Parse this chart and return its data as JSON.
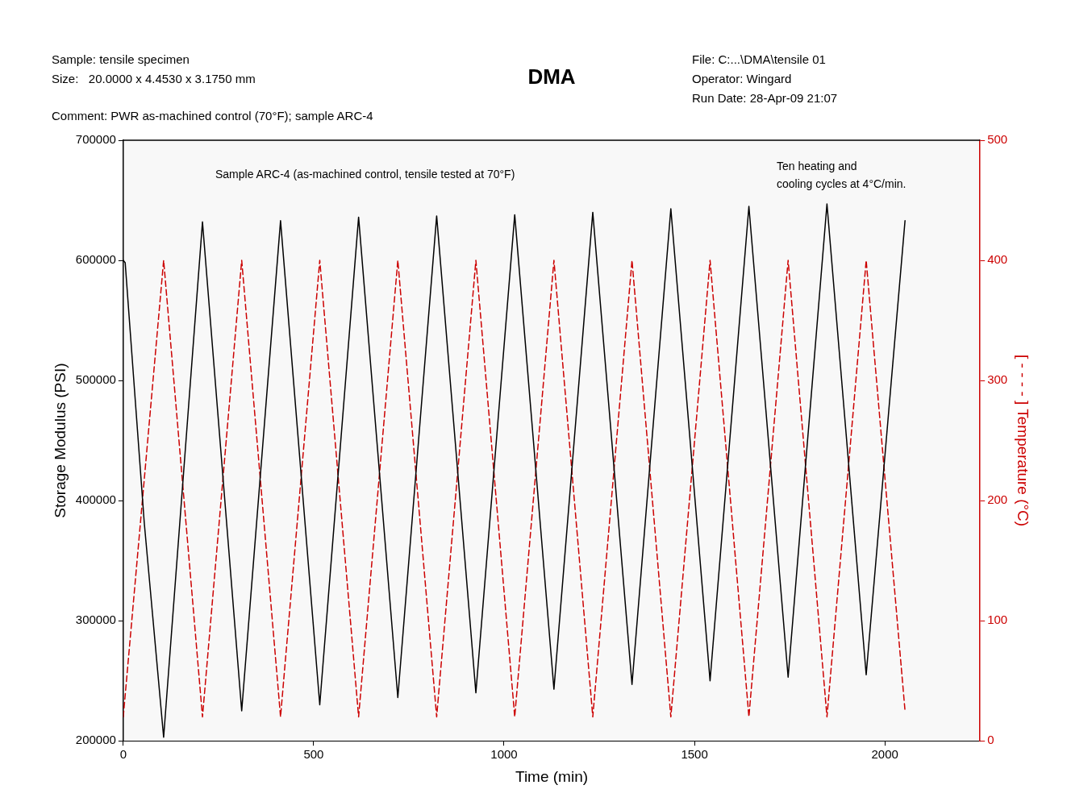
{
  "chart_data": {
    "type": "line",
    "title": "DMA",
    "xlabel": "Time (min)",
    "ylabel": "Storage Modulus (PSI)",
    "y2label": "[ - - - - ] Temperature (°C)",
    "annotations": [
      "Sample: tensile specimen",
      "Size:   20.0000 x 4.4530 x 3.1750 mm",
      "Comment: PWR as-machined control (70°F); sample ARC-4",
      "File: C:...\\DMA\\tensile 01",
      "Operator: Wingard",
      "Run Date: 28-Apr-09 21:07",
      "Sample ARC-4 (as-machined control, tensile tested at 70°F)",
      "Ten heating and\ncooling cycles at 4°C/min."
    ],
    "xlim": [
      0,
      2250
    ],
    "xticks": [
      0,
      500,
      1000,
      1500,
      2000
    ],
    "ylim": [
      200000,
      700000
    ],
    "yticks": [
      200000,
      300000,
      400000,
      500000,
      600000,
      700000
    ],
    "y2lim": [
      0,
      500
    ],
    "y2ticks": [
      0,
      100,
      200,
      300,
      400,
      500
    ],
    "grid": false,
    "legend": false,
    "marker": "none",
    "series": [
      {
        "color": "#000000",
        "line_style": "solid",
        "x": [
          0,
          5,
          55,
          106,
          208,
          311,
          413,
          516,
          618,
          721,
          823,
          926,
          1028,
          1131,
          1233,
          1336,
          1438,
          1541,
          1643,
          1746,
          1848,
          1951,
          2053
        ],
        "values": [
          600000,
          598000,
          382000,
          203000,
          632000,
          225000,
          633000,
          230000,
          636000,
          236000,
          637000,
          240000,
          638000,
          243000,
          640000,
          247000,
          643000,
          250000,
          645000,
          253000,
          647000,
          255000,
          633000
        ]
      },
      {
        "color": "#cc0000",
        "axis": "y2",
        "line_style": "dashed",
        "x": [
          0,
          106,
          208,
          311,
          413,
          516,
          618,
          721,
          823,
          926,
          1028,
          1131,
          1233,
          1336,
          1438,
          1541,
          1643,
          1746,
          1848,
          1951,
          2053
        ],
        "values": [
          20,
          400,
          20,
          400,
          20,
          400,
          20,
          400,
          20,
          400,
          20,
          400,
          20,
          400,
          20,
          400,
          20,
          400,
          20,
          400,
          25
        ]
      }
    ]
  }
}
